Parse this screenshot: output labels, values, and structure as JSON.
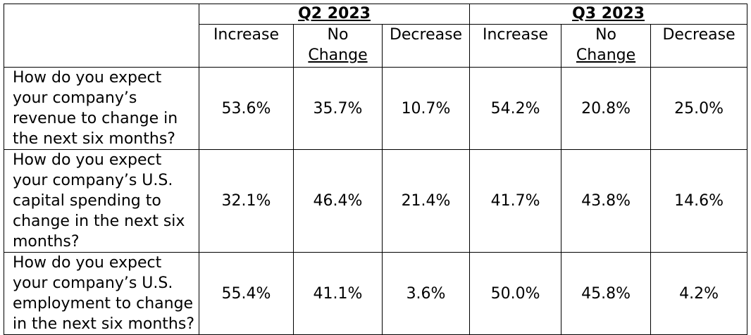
{
  "periods": [
    {
      "label": "Q2 2023",
      "columns": [
        {
          "line1": "Increase",
          "line2": ""
        },
        {
          "line1": "No",
          "line2": "Change"
        },
        {
          "line1": "Decrease",
          "line2": ""
        }
      ]
    },
    {
      "label": "Q3 2023",
      "columns": [
        {
          "line1": "Increase",
          "line2": ""
        },
        {
          "line1": "No",
          "line2": "Change"
        },
        {
          "line1": "Decrease",
          "line2": ""
        }
      ]
    }
  ],
  "rows": [
    {
      "question": "How do you expect your company’s revenue to change in the next six months?",
      "values": [
        "53.6%",
        "35.7%",
        "10.7%",
        "54.2%",
        "20.8%",
        "25.0%"
      ]
    },
    {
      "question": "How do you expect your company’s U.S. capital spending to change in the next six months?",
      "values": [
        "32.1%",
        "46.4%",
        "21.4%",
        "41.7%",
        "43.8%",
        "14.6%"
      ]
    },
    {
      "question": "How do you expect your company’s U.S. employment to change in the next six months?",
      "values": [
        "55.4%",
        "41.1%",
        "3.6%",
        "50.0%",
        "45.8%",
        "4.2%"
      ]
    }
  ],
  "chart_data": {
    "type": "table",
    "columns": [
      "Q2 2023 Increase",
      "Q2 2023 No Change",
      "Q2 2023 Decrease",
      "Q3 2023 Increase",
      "Q3 2023 No Change",
      "Q3 2023 Decrease"
    ],
    "rows": [
      [
        "How do you expect your company’s revenue to change in the next six months?",
        "53.6%",
        "35.7%",
        "10.7%",
        "54.2%",
        "20.8%",
        "25.0%"
      ],
      [
        "How do you expect your company’s U.S. capital spending to change in the next six months?",
        "32.1%",
        "46.4%",
        "21.4%",
        "41.7%",
        "43.8%",
        "14.6%"
      ],
      [
        "How do you expect your company’s U.S. employment to change in the next six months?",
        "55.4%",
        "41.1%",
        "3.6%",
        "50.0%",
        "45.8%",
        "4.2%"
      ]
    ]
  }
}
